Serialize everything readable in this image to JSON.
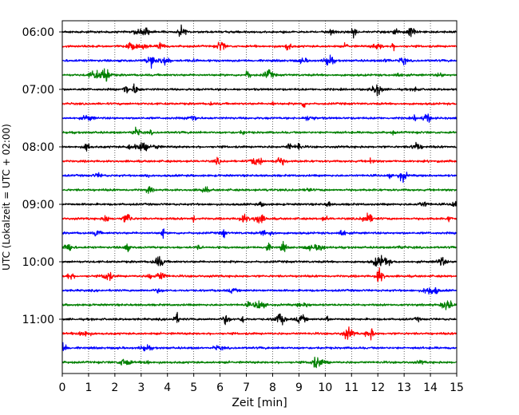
{
  "chart_data": {
    "type": "line",
    "title": "",
    "xlabel": "Zeit  [min]",
    "ylabel": "UTC (Lokalzeit = UTC + 02:00)",
    "xlim": [
      0,
      15
    ],
    "x_ticks": [
      0,
      1,
      2,
      3,
      4,
      5,
      6,
      7,
      8,
      9,
      10,
      11,
      12,
      13,
      14,
      15
    ],
    "y_ticks": [
      "06:00",
      "07:00",
      "08:00",
      "09:00",
      "10:00",
      "11:00"
    ],
    "y_tick_rows": [
      0,
      4,
      8,
      12,
      16,
      20
    ],
    "grid": "vertical dotted",
    "trace_minutes_per_row": 15,
    "rows": [
      {
        "start": "06:00",
        "color": "#000000"
      },
      {
        "start": "06:15",
        "color": "#ff0000"
      },
      {
        "start": "06:30",
        "color": "#0000ff"
      },
      {
        "start": "06:45",
        "color": "#008000"
      },
      {
        "start": "07:00",
        "color": "#000000"
      },
      {
        "start": "07:15",
        "color": "#ff0000"
      },
      {
        "start": "07:30",
        "color": "#0000ff"
      },
      {
        "start": "07:45",
        "color": "#008000"
      },
      {
        "start": "08:00",
        "color": "#000000"
      },
      {
        "start": "08:15",
        "color": "#ff0000"
      },
      {
        "start": "08:30",
        "color": "#0000ff"
      },
      {
        "start": "08:45",
        "color": "#008000"
      },
      {
        "start": "09:00",
        "color": "#000000"
      },
      {
        "start": "09:15",
        "color": "#ff0000"
      },
      {
        "start": "09:30",
        "color": "#0000ff"
      },
      {
        "start": "09:45",
        "color": "#008000"
      },
      {
        "start": "10:00",
        "color": "#000000"
      },
      {
        "start": "10:15",
        "color": "#ff0000"
      },
      {
        "start": "10:30",
        "color": "#0000ff"
      },
      {
        "start": "10:45",
        "color": "#008000"
      },
      {
        "start": "11:00",
        "color": "#000000"
      },
      {
        "start": "11:15",
        "color": "#ff0000"
      },
      {
        "start": "11:30",
        "color": "#0000ff"
      },
      {
        "start": "11:45",
        "color": "#008000"
      }
    ],
    "colors": [
      "#000000",
      "#ff0000",
      "#0000ff",
      "#008000"
    ]
  }
}
